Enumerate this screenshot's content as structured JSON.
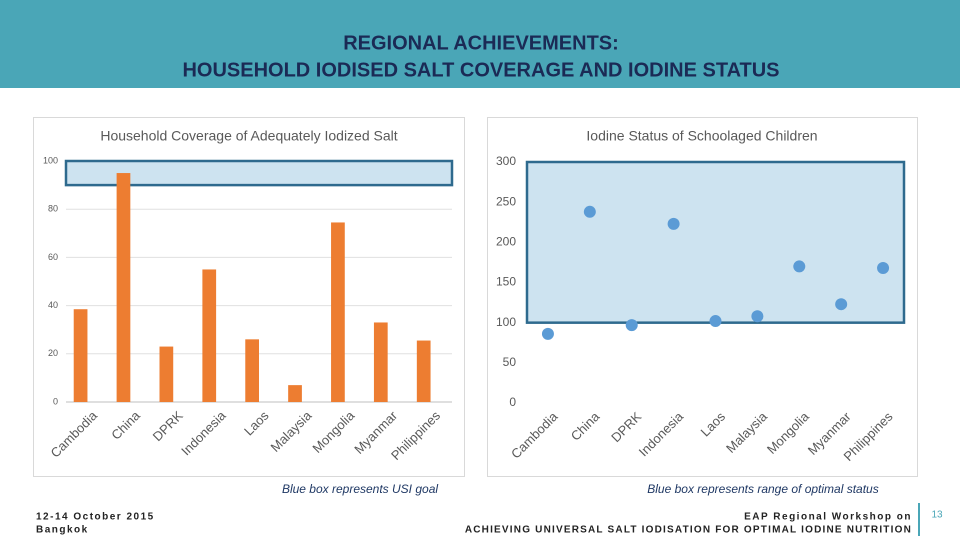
{
  "header": {
    "title_line1": "REGIONAL ACHIEVEMENTS:",
    "title_line2": "HOUSEHOLD IODISED SALT COVERAGE AND IODINE STATUS"
  },
  "chart_data": [
    {
      "type": "bar",
      "title": "Household Coverage of Adequately Iodized Salt",
      "categories": [
        "Cambodia",
        "China",
        "DPRK",
        "Indonesia",
        "Laos",
        "Malaysia",
        "Mongolia",
        "Myanmar",
        "Philippines"
      ],
      "values": [
        38.5,
        95,
        23,
        55,
        26,
        7,
        74.5,
        33,
        25.5
      ],
      "color": "#ed7d31",
      "ylim": [
        0,
        100
      ],
      "yticks": [
        0,
        20,
        40,
        60,
        80,
        100
      ],
      "grid": true,
      "highlight_range": [
        90,
        100
      ],
      "highlight_color": "#cde3f0",
      "annotation": "Blue box represents USI goal"
    },
    {
      "type": "scatter",
      "title": "Iodine Status of Schoolaged Children",
      "categories": [
        "Cambodia",
        "China",
        "DPRK",
        "Indonesia",
        "Laos",
        "Malaysia",
        "Mongolia",
        "Myanmar",
        "Philippines"
      ],
      "values": [
        86,
        238,
        97,
        223,
        102,
        108,
        170,
        123,
        168
      ],
      "color": "#5b9bd5",
      "ylim": [
        0,
        300
      ],
      "yticks": [
        0,
        50,
        100,
        150,
        200,
        250,
        300
      ],
      "grid": false,
      "highlight_range": [
        100,
        300
      ],
      "highlight_color": "#cde3f0",
      "annotation": "Blue box represents range of optimal status"
    }
  ],
  "footer": {
    "date": "12-14 October 2015",
    "place": "Bangkok",
    "event_line1": "EAP Regional Workshop on",
    "event_line2": "ACHIEVING UNIVERSAL SALT IODISATION FOR OPTIMAL IODINE NUTRITION",
    "page": "13"
  }
}
